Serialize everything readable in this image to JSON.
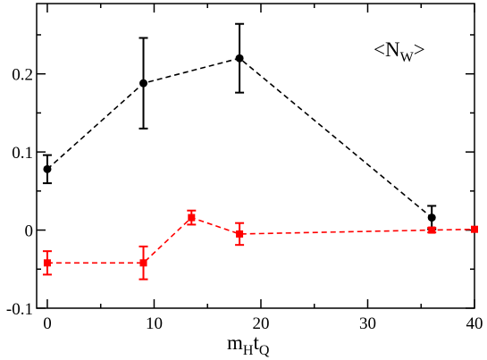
{
  "chart_data": {
    "type": "line",
    "title": "",
    "xlabel": {
      "main_1": "m",
      "sub_1": "H",
      "main_2": "t",
      "sub_2": "Q"
    },
    "ylabel": "",
    "annotation": {
      "open": "<N",
      "sub": "W",
      "close": ">"
    },
    "xlim": [
      -1,
      40
    ],
    "ylim": [
      -0.1,
      0.29
    ],
    "xticks": [
      0,
      10,
      20,
      30,
      40
    ],
    "xtick_labels": [
      "0",
      "10",
      "20",
      "30",
      "40"
    ],
    "yticks": [
      -0.1,
      0,
      0.1,
      0.2
    ],
    "ytick_labels": [
      "-0.1",
      "0",
      "0.1",
      "0.2"
    ],
    "grid": false,
    "series": [
      {
        "color": "#000000",
        "marker": "circle",
        "line_style": "dashed",
        "points": [
          {
            "x": 0,
            "y": 0.078,
            "err": 0.018
          },
          {
            "x": 9,
            "y": 0.188,
            "err": 0.058
          },
          {
            "x": 18,
            "y": 0.22,
            "err": 0.044
          },
          {
            "x": 36,
            "y": 0.016,
            "err": 0.015
          }
        ]
      },
      {
        "color": "#ff0000",
        "marker": "square",
        "line_style": "dashed",
        "points": [
          {
            "x": 0,
            "y": -0.042,
            "err": 0.015
          },
          {
            "x": 9,
            "y": -0.042,
            "err": 0.021
          },
          {
            "x": 13.5,
            "y": 0.016,
            "err": 0.009
          },
          {
            "x": 18,
            "y": -0.005,
            "err": 0.014
          },
          {
            "x": 36,
            "y": 0.0,
            "err": 0.003
          },
          {
            "x": 40,
            "y": 0.001,
            "err": 0
          }
        ]
      }
    ]
  }
}
